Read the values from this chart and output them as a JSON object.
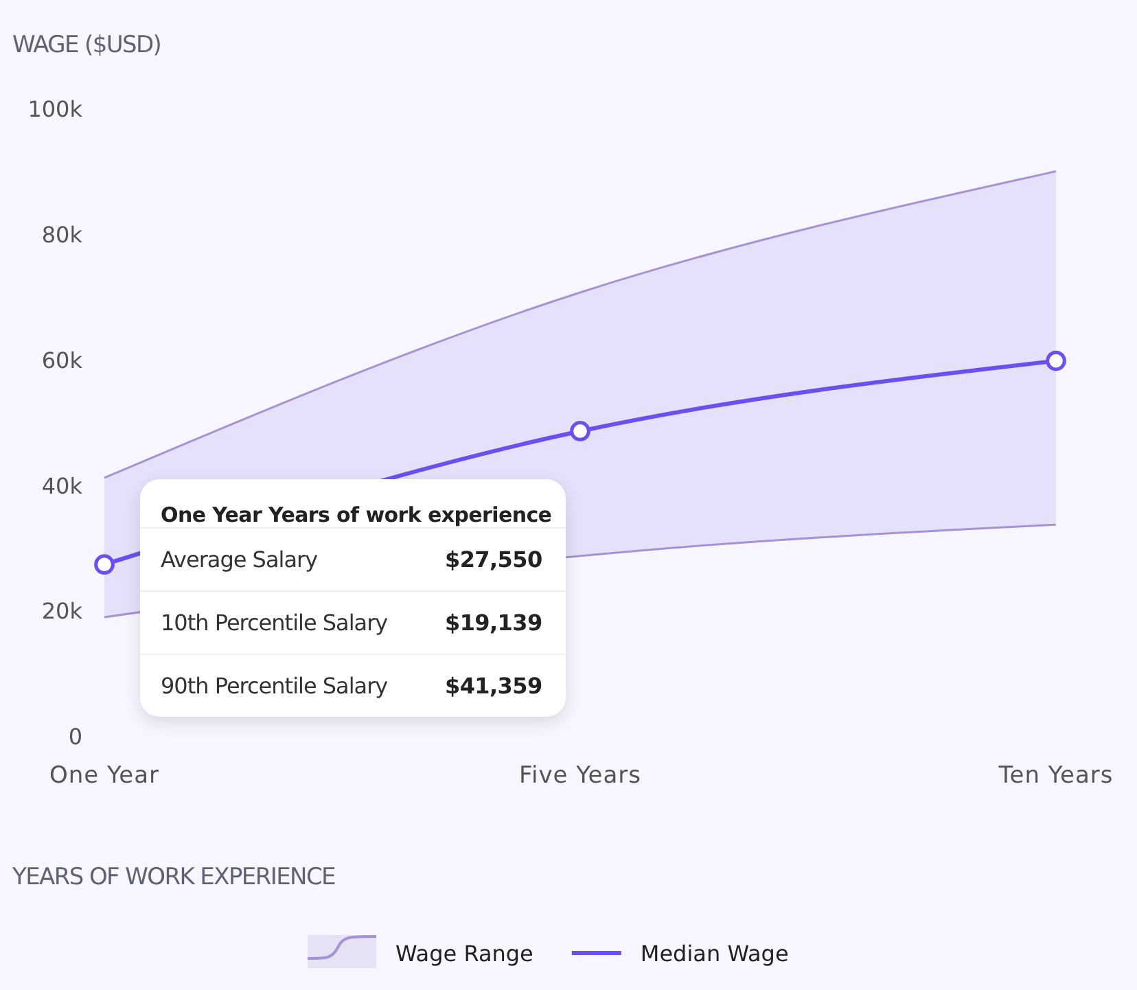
{
  "chart_data": {
    "type": "line",
    "ylabel": "WAGE ($USD)",
    "xlabel": "YEARS OF WORK EXPERIENCE",
    "categories": [
      "One Year",
      "Five Years",
      "Ten Years"
    ],
    "series": [
      {
        "name": "Wage Range",
        "type": "line",
        "color": "#a593d6",
        "marker": "none",
        "values": [
          41359,
          70900,
          90200
        ]
      },
      {
        "type": "line",
        "color": "#a593d6",
        "marker": "none",
        "values": [
          19139,
          28900,
          33900
        ]
      },
      {
        "name": "Median Wage",
        "type": "line",
        "color": "#6c4ff0",
        "values": [
          27550,
          48800,
          60000
        ],
        "lower": [
          19139,
          28900,
          33900
        ],
        "upper": [
          41359,
          70900,
          90200
        ]
      }
    ],
    "grid": false,
    "ylim": [
      0,
      100000
    ],
    "yticks": [
      {
        "value": 0,
        "label": "0"
      },
      {
        "value": 20000,
        "label": "20k"
      },
      {
        "value": 40000,
        "label": "40k"
      },
      {
        "value": 60000,
        "label": "60k"
      },
      {
        "value": 80000,
        "label": "80k"
      },
      {
        "value": 100000,
        "label": "100k"
      }
    ],
    "marker": "circle",
    "legend": "bottom",
    "annotations": [
      "One Year Years of work experience",
      "Average Salary",
      "$27,550",
      "10th Percentile Salary",
      "$19,139",
      "90th Percentile Salary",
      "$41,359"
    ]
  }
}
